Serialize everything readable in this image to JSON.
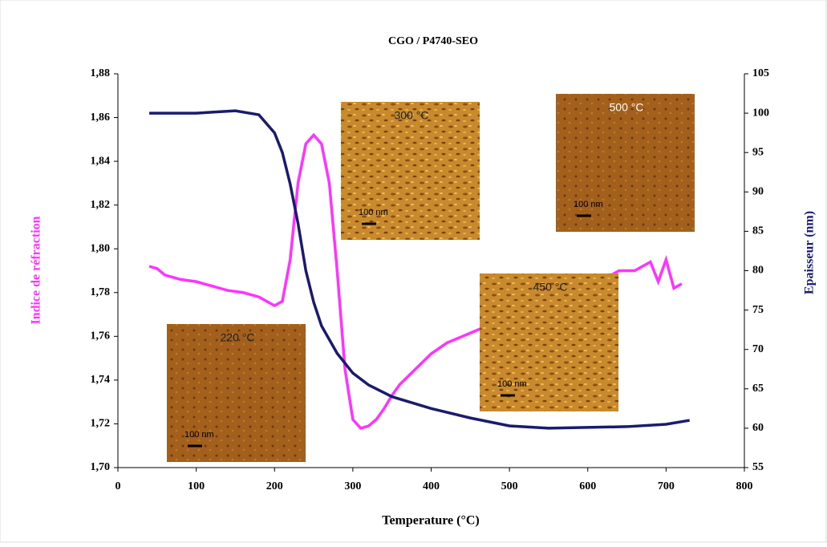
{
  "chart_data": {
    "type": "line",
    "title": "CGO / P4740-SEO",
    "xlabel": "Temperature (°C)",
    "ylabel": "Indice de réfraction",
    "y2label": "Epaisseur (nm)",
    "xlim": [
      0,
      800
    ],
    "xticks": [
      0,
      100,
      200,
      300,
      400,
      500,
      600,
      700,
      800
    ],
    "ylim": [
      1.7,
      1.88
    ],
    "yticks": [
      {
        "value": 1.7,
        "label": "1,70"
      },
      {
        "value": 1.72,
        "label": "1,72"
      },
      {
        "value": 1.74,
        "label": "1,74"
      },
      {
        "value": 1.76,
        "label": "1,76"
      },
      {
        "value": 1.78,
        "label": "1,78"
      },
      {
        "value": 1.8,
        "label": "1,80"
      },
      {
        "value": 1.82,
        "label": "1,82"
      },
      {
        "value": 1.84,
        "label": "1,84"
      },
      {
        "value": 1.86,
        "label": "1,86"
      },
      {
        "value": 1.88,
        "label": "1,88"
      }
    ],
    "y2lim": [
      55,
      105
    ],
    "y2ticks": [
      55,
      60,
      65,
      70,
      75,
      80,
      85,
      90,
      95,
      100,
      105
    ],
    "series": [
      {
        "color": "#ff33ff",
        "x": [
          40,
          50,
          60,
          80,
          100,
          120,
          140,
          160,
          180,
          200,
          210,
          220,
          230,
          240,
          250,
          260,
          270,
          280,
          290,
          300,
          310,
          320,
          330,
          340,
          350,
          360,
          380,
          400,
          420,
          440,
          460,
          500,
          550,
          600,
          620,
          640,
          660,
          680,
          690,
          700,
          710,
          720
        ],
        "values": [
          1.792,
          1.791,
          1.788,
          1.786,
          1.785,
          1.783,
          1.781,
          1.78,
          1.778,
          1.774,
          1.776,
          1.795,
          1.83,
          1.848,
          1.852,
          1.848,
          1.83,
          1.79,
          1.745,
          1.722,
          1.718,
          1.719,
          1.722,
          1.727,
          1.733,
          1.738,
          1.745,
          1.752,
          1.757,
          1.76,
          1.763,
          1.77,
          1.778,
          1.784,
          1.786,
          1.79,
          1.79,
          1.794,
          1.785,
          1.795,
          1.782,
          1.784
        ]
      },
      {
        "color": "#1a1a6e",
        "axis": "y2",
        "x": [
          40,
          100,
          150,
          180,
          200,
          210,
          220,
          230,
          240,
          250,
          260,
          280,
          300,
          320,
          350,
          400,
          450,
          500,
          550,
          600,
          650,
          700,
          730
        ],
        "values": [
          100.0,
          100.0,
          100.3,
          99.8,
          97.5,
          95,
          91,
          86,
          80,
          76,
          73,
          69.5,
          67,
          65.5,
          64,
          62.5,
          61.3,
          60.3,
          60.0,
          60.1,
          60.2,
          60.5,
          61.0
        ]
      }
    ],
    "insets": [
      {
        "label": "300 °C",
        "scale": "100 nm"
      },
      {
        "label": "500 °C",
        "scale": "100 nm"
      },
      {
        "label": "450 °C",
        "scale": "100 nm"
      },
      {
        "label": "220 °C",
        "scale": "100 nm"
      }
    ]
  }
}
